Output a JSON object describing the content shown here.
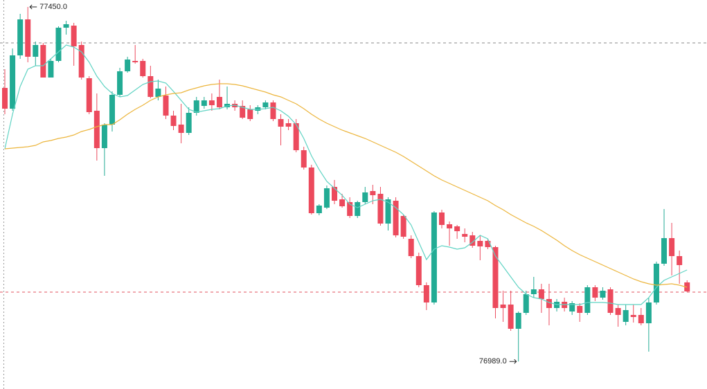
{
  "chart_data": {
    "type": "candlestick",
    "ylim": [
      76953.2,
      77459
    ],
    "up_color": "#22ab94",
    "down_color": "#ec4a5d",
    "max_label": "77450.0",
    "min_label": "76989.0",
    "price_lines": [
      {
        "value": 77403.2,
        "color": "#888888"
      },
      {
        "value": 77079.2,
        "color": "#e0525d"
      }
    ],
    "open": [
      77344.7,
      77317.7,
      77387,
      77433.8,
      77385.2,
      77400.5,
      77358.2,
      77379.8,
      77423,
      77425.7,
      77400.5,
      77357.3,
      77315,
      77266.4,
      77297,
      77335.7,
      77366.3,
      77379.8,
      77379.8,
      77360,
      77333,
      77334.8,
      77308.7,
      77297,
      77286.2,
      77312.3,
      77321.3,
      77328.5,
      77333,
      77319.5,
      77324,
      77321.3,
      77316.8,
      77315,
      77319.5,
      77325.8,
      77304.2,
      77298.8,
      77298.8,
      77263.7,
      77241.2,
      77181.8,
      77189,
      77216,
      77199.8,
      77196.2,
      77178.2,
      77196.2,
      77210.6,
      77207,
      77168.3,
      77198,
      77178.2,
      77148.5,
      77126,
      77088.2,
      77065.7,
      77182.7,
      77167.4,
      77164.7,
      77154.8,
      77153,
      77145.8,
      77145.8,
      77137.7,
      77063,
      77063,
      77031.5,
      77052.2,
      77076.5,
      77082.8,
      77070.2,
      77058.5,
      77066.6,
      77054,
      77061.2,
      77052.2,
      77085.5,
      77072,
      77082.8,
      77058.5,
      77040.5,
      77049.5,
      77049.5,
      77038.7,
      77065.7,
      77116.1,
      77149.4,
      77126,
      77091.8
    ],
    "high": [
      77369,
      77396,
      77441,
      77450,
      77405,
      77403.2,
      77382.5,
      77424.8,
      77432,
      77429.3,
      77405,
      77360,
      77337.5,
      77298.8,
      77340.2,
      77370.8,
      77385.2,
      77400.5,
      77382.5,
      77373.5,
      77355.5,
      77346.5,
      77315,
      77324,
      77319.5,
      77333,
      77333,
      77337.5,
      77355.5,
      77346.5,
      77328.5,
      77328.5,
      77322.2,
      77322.2,
      77328.5,
      77328.5,
      77310.5,
      77304.2,
      77304.2,
      77268.2,
      77244.8,
      77193.5,
      77217.8,
      77225,
      77207,
      77202.5,
      77198,
      77216,
      77218.7,
      77216,
      77202.5,
      77202.5,
      77180,
      77153,
      77130.5,
      77091.8,
      77184.5,
      77186.3,
      77171,
      77166.5,
      77162,
      77157.5,
      77153,
      77148.5,
      77139.5,
      77081,
      77081,
      77054,
      77081,
      77099,
      77090,
      77090,
      77070.2,
      77072,
      77067.5,
      77064.8,
      77088.2,
      77088.2,
      77085.5,
      77085.5,
      77063,
      77063,
      77063,
      77058.5,
      77072,
      77118.8,
      77187.2,
      77169.2,
      77133.2,
      77094.5
    ],
    "low": [
      77310.5,
      77315,
      77382.5,
      77378,
      77373.5,
      77358.2,
      77358.2,
      77378,
      77414,
      77373.5,
      77355.5,
      77310.5,
      77250.2,
      77230.4,
      77288,
      77333,
      77364.5,
      77376.2,
      77358.2,
      77331.2,
      77328.5,
      77304.2,
      77289.8,
      77272.7,
      77283.5,
      77308.7,
      77317.7,
      77315,
      77316.8,
      77316.8,
      77315,
      77304.2,
      77301.5,
      77310.5,
      77316.8,
      77301.5,
      77270,
      77289.8,
      77261,
      77238.5,
      77180,
      77179.1,
      77187.2,
      77193.5,
      77189,
      77175.5,
      77175.5,
      77193.5,
      77193.5,
      77165.6,
      77159.3,
      77150.3,
      77148.5,
      77123.3,
      77085.5,
      77055.8,
      77063,
      77162,
      77139.5,
      77148.5,
      77144,
      77136.8,
      77120.6,
      77135,
      77045,
      77040.5,
      77028.8,
      76989,
      77049.5,
      77072,
      77052.2,
      77036,
      77054,
      77054,
      77049.5,
      77040.5,
      77049.5,
      77067.5,
      77069.3,
      77049.5,
      77034.2,
      77036,
      77039.6,
      77036,
      77001.8,
      77063,
      77113.4,
      77100.8,
      77090,
      77079.2
    ],
    "close": [
      77317.7,
      77387,
      77433.8,
      77385.2,
      77400.5,
      77358.2,
      77379.8,
      77423,
      77427.5,
      77398.7,
      77358.2,
      77313.2,
      77266.4,
      77297,
      77335.7,
      77366.3,
      77381.6,
      77378,
      77360,
      77333,
      77343.8,
      77308.7,
      77295.2,
      77286.2,
      77312.3,
      77328.5,
      77328.5,
      77322.2,
      77319.5,
      77324,
      77319.5,
      77306,
      77304.2,
      77319.5,
      77325.8,
      77304.2,
      77294.3,
      77294.3,
      77263.7,
      77241.2,
      77181.8,
      77191.7,
      77214.2,
      77198,
      77190.8,
      77178.2,
      77196.2,
      77208.8,
      77205.2,
      77168.3,
      77199.8,
      77153,
      77151.2,
      77126,
      77088.2,
      77065.7,
      77182.7,
      77166.5,
      77162,
      77158.4,
      77151.2,
      77139.5,
      77138.6,
      77137.7,
      77058.5,
      77058.5,
      77031.5,
      77052.2,
      77076.5,
      77082.8,
      77070.2,
      77058.5,
      77066.6,
      77058.5,
      77064.8,
      77052.2,
      77085.5,
      77072,
      77081,
      77052.2,
      77049.5,
      77055.8,
      77046.8,
      77038.7,
      77065.7,
      77116.1,
      77149.4,
      77126,
      77114.3,
      77080.1
    ],
    "ma_lines": [
      {
        "color": "#5fd3c3",
        "values": [
          77265.5,
          77310.5,
          77346.5,
          77369,
          77373.5,
          77373.5,
          77382.5,
          77391.5,
          77400.5,
          77397.8,
          77391.5,
          77378,
          77360,
          77346.5,
          77337.5,
          77333,
          77334.8,
          77342,
          77349.2,
          77352.8,
          77353.7,
          77351,
          77340.2,
          77328.5,
          77316.8,
          77313.2,
          77315,
          77316.8,
          77317.7,
          77321.3,
          77322.2,
          77319.5,
          77316.8,
          77316.8,
          77317.7,
          77319.5,
          77315,
          77307.8,
          77297,
          77279,
          77256.5,
          77238.5,
          77223.2,
          77214.2,
          77205.2,
          77193.5,
          77189,
          77193.5,
          77198,
          77199.8,
          77196.2,
          77189,
          77180,
          77166.5,
          77144,
          77121.5,
          77135,
          77139.5,
          77137.7,
          77135,
          77136.8,
          77144,
          77153,
          77148.5,
          77126,
          77112.5,
          77099,
          77085.5,
          77076.5,
          77072,
          77070.2,
          77065.7,
          77063,
          77063,
          77063,
          77063,
          77065.7,
          77065.7,
          77065.7,
          77064.8,
          77063,
          77063,
          77063,
          77063,
          77072,
          77085.5,
          77094.5,
          77099,
          77103.5,
          77108
        ]
      },
      {
        "color": "#ecb53c",
        "values": [
          77265.5,
          77266.4,
          77267.3,
          77268.2,
          77270,
          77274.5,
          77276.3,
          77279,
          77280.8,
          77283.5,
          77288,
          77290.7,
          77294.3,
          77297,
          77297,
          77303.3,
          77310.5,
          77316.8,
          77322.2,
          77328.5,
          77333,
          77335.7,
          77337.5,
          77338.4,
          77342,
          77344.7,
          77347.4,
          77349.2,
          77350.1,
          77350.1,
          77349.2,
          77347.4,
          77344.7,
          77342,
          77339.3,
          77335.7,
          77333,
          77328.5,
          77324,
          77317.7,
          77310.5,
          77304.2,
          77298.8,
          77294.3,
          77289.8,
          77286.2,
          77282.6,
          77279,
          77274.5,
          77270,
          77265.5,
          77261,
          77255.6,
          77249.3,
          77243,
          77236.7,
          77230.4,
          77225,
          77220.5,
          77216,
          77211.5,
          77207,
          77202.5,
          77198,
          77191.7,
          77186.3,
          77180,
          77174.6,
          77169.2,
          77164.7,
          77159.3,
          77153,
          77146.7,
          77139.5,
          77133.2,
          77127.8,
          77123.3,
          77118.8,
          77114.3,
          77109.8,
          77105.3,
          77100.8,
          77096.3,
          77092.7,
          77090,
          77088.2,
          77089.1,
          77090,
          77088.2,
          77085.5
        ]
      }
    ]
  }
}
